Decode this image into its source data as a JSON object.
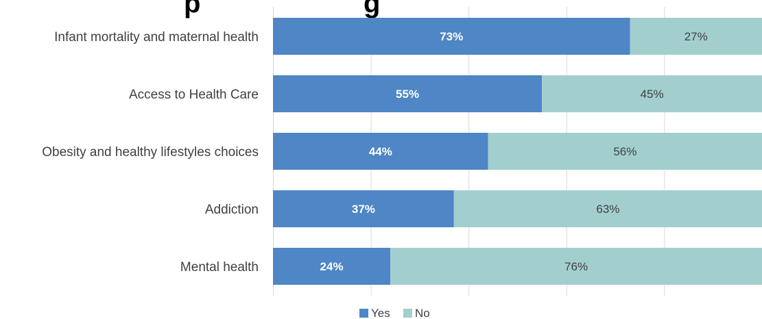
{
  "chart_data": {
    "type": "bar",
    "orientation": "horizontal",
    "stacked": true,
    "title_fragments": [
      "p",
      "g"
    ],
    "categories": [
      "Infant mortality and maternal health",
      "Access to Health Care",
      "Obesity and healthy lifestyles choices",
      "Addiction",
      "Mental health"
    ],
    "series": [
      {
        "name": "Yes",
        "color": "#4e86c6",
        "values": [
          73,
          55,
          44,
          37,
          24
        ],
        "labels": [
          "73%",
          "55%",
          "44%",
          "37%",
          "24%"
        ]
      },
      {
        "name": "No",
        "color": "#a3cece",
        "values": [
          27,
          45,
          56,
          63,
          76
        ],
        "labels": [
          "27%",
          "45%",
          "56%",
          "63%",
          "76%"
        ]
      }
    ],
    "xlim": [
      0,
      100
    ],
    "grid": true,
    "legend_position": "bottom"
  }
}
